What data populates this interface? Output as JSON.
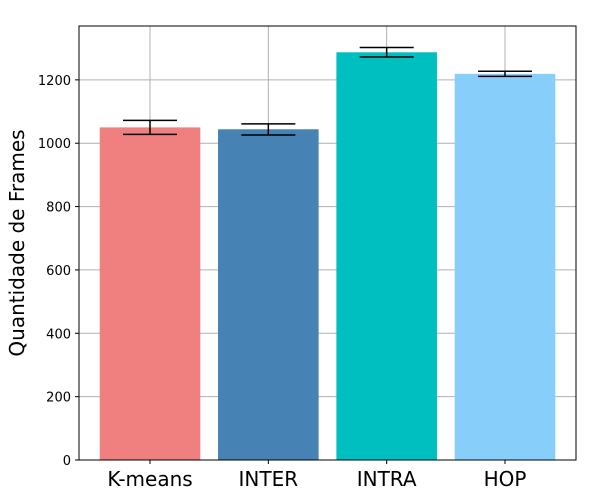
{
  "chart_data": {
    "type": "bar",
    "title": "",
    "xlabel": "",
    "ylabel": "Quantidade de Frames",
    "categories": [
      "K-means",
      "INTER",
      "INTRA",
      "HOP"
    ],
    "values": [
      1050,
      1044,
      1287,
      1219
    ],
    "error_bars": [
      {
        "lower": 1028,
        "upper": 1072
      },
      {
        "lower": 1026,
        "upper": 1061
      },
      {
        "lower": 1272,
        "upper": 1302
      },
      {
        "lower": 1211,
        "upper": 1227
      }
    ],
    "colors": [
      "#f08080",
      "#4682b4",
      "#00bfc0",
      "#87cefa"
    ],
    "error_color": "#000000",
    "grid_color": "#b0b0b0",
    "ylim": [
      0,
      1370
    ],
    "yticks": [
      0,
      200,
      400,
      600,
      800,
      1000,
      1200
    ],
    "ytick_labels": [
      "0",
      "200",
      "400",
      "600",
      "800",
      "1000",
      "1200"
    ],
    "grid": true,
    "legend": false
  }
}
